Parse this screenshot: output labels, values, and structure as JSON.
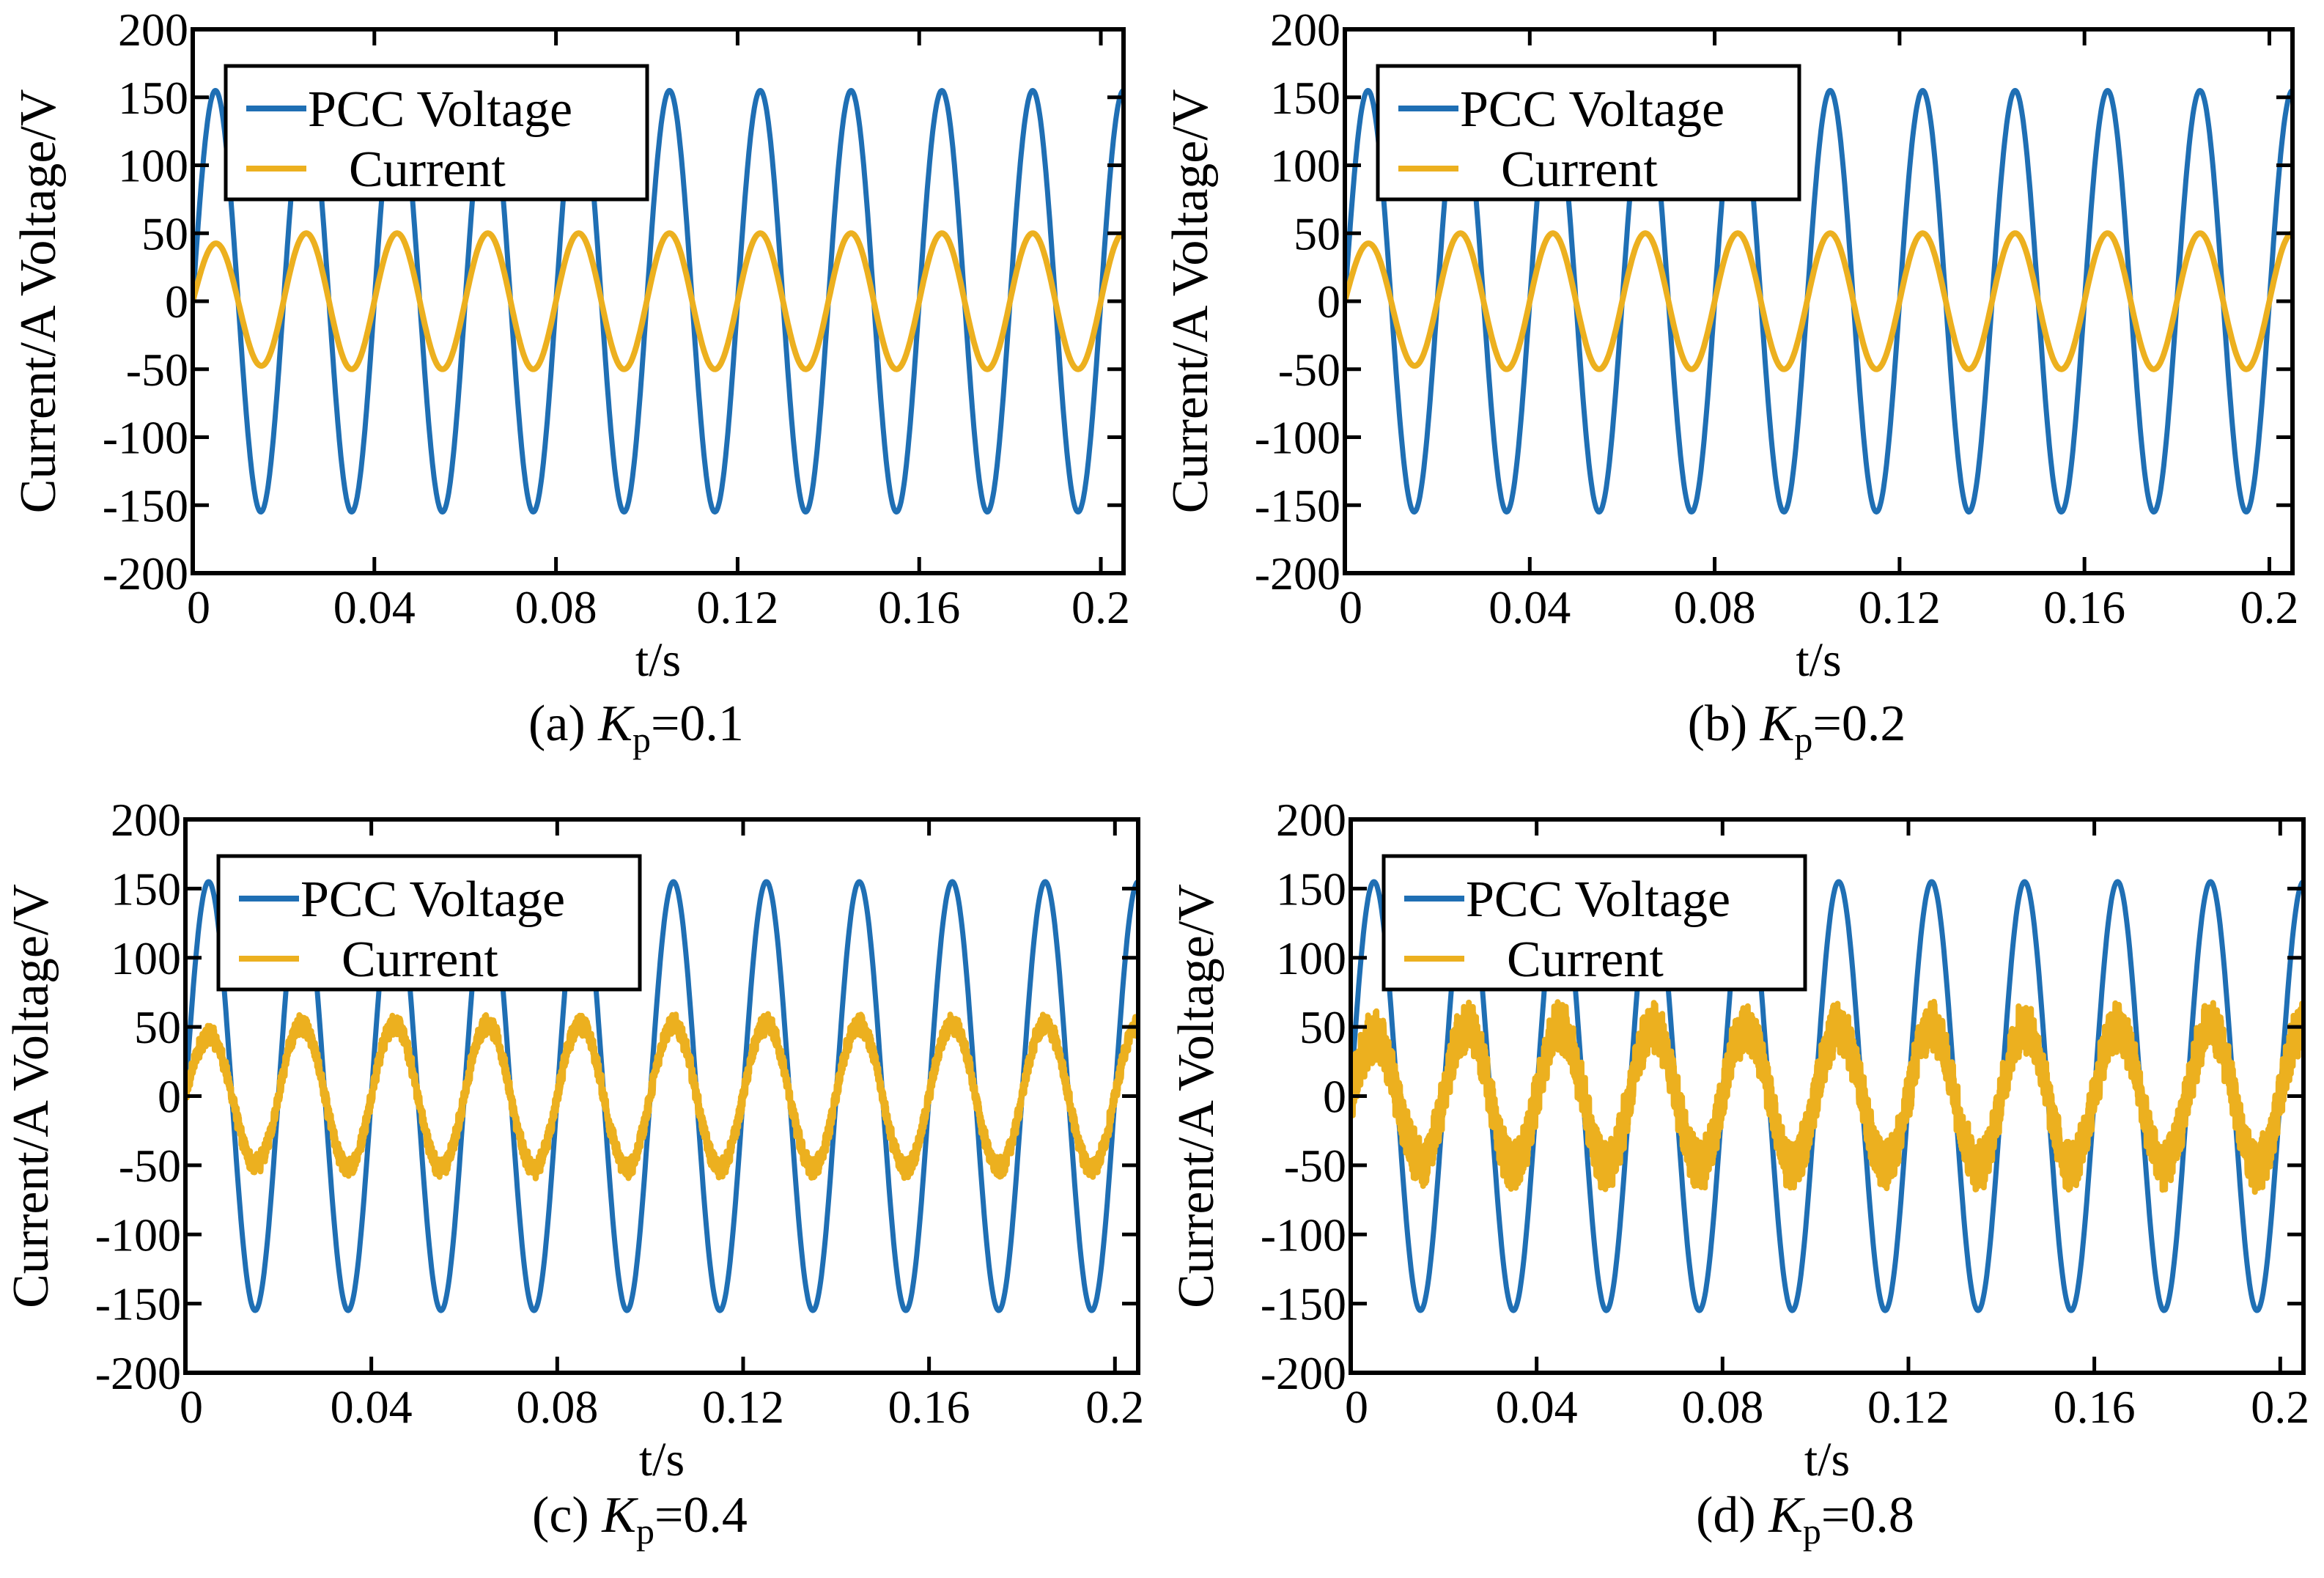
{
  "chart_data": [
    {
      "type": "line",
      "caption_prefix": "(a) ",
      "caption_var": "K",
      "caption_sub": "p",
      "caption_value": "=0.1",
      "xlabel": "t/s",
      "ylabel": "Current/A    Voltage/V",
      "xlim": [
        0,
        0.205
      ],
      "ylim": [
        -200,
        200
      ],
      "xticks": [
        "0",
        "0.04",
        "0.08",
        "0.12",
        "0.16",
        "0.2"
      ],
      "yticks": [
        "-200",
        "-150",
        "-100",
        "-50",
        "0",
        "50",
        "100",
        "150",
        "200"
      ],
      "legend_position": "top-left",
      "series": [
        {
          "name": "PCC Voltage",
          "color": "#1f6fb4",
          "amplitude": 155,
          "frequency_hz": 50,
          "noise": 0
        },
        {
          "name": "Current",
          "color": "#ecb01f",
          "amplitude": 50,
          "frequency_hz": 50,
          "noise": 0
        }
      ]
    },
    {
      "type": "line",
      "caption_prefix": "(b) ",
      "caption_var": "K",
      "caption_sub": "p",
      "caption_value": "=0.2",
      "xlabel": "t/s",
      "ylabel": "Current/A    Voltage/V",
      "xlim": [
        0,
        0.205
      ],
      "ylim": [
        -200,
        200
      ],
      "xticks": [
        "0",
        "0.04",
        "0.08",
        "0.12",
        "0.16",
        "0.2"
      ],
      "yticks": [
        "-200",
        "-150",
        "-100",
        "-50",
        "0",
        "50",
        "100",
        "150",
        "200"
      ],
      "legend_position": "top-left",
      "series": [
        {
          "name": "PCC Voltage",
          "color": "#1f6fb4",
          "amplitude": 155,
          "frequency_hz": 50,
          "noise": 0
        },
        {
          "name": "Current",
          "color": "#ecb01f",
          "amplitude": 50,
          "frequency_hz": 50,
          "noise": 0
        }
      ]
    },
    {
      "type": "line",
      "caption_prefix": "(c) ",
      "caption_var": "K",
      "caption_sub": "p",
      "caption_value": "=0.4",
      "xlabel": "t/s",
      "ylabel": "Current/A    Voltage/V",
      "xlim": [
        0,
        0.205
      ],
      "ylim": [
        -200,
        200
      ],
      "xticks": [
        "0",
        "0.04",
        "0.08",
        "0.12",
        "0.16",
        "0.2"
      ],
      "yticks": [
        "-200",
        "-150",
        "-100",
        "-50",
        "0",
        "50",
        "100",
        "150",
        "200"
      ],
      "legend_position": "top-left",
      "series": [
        {
          "name": "PCC Voltage",
          "color": "#1f6fb4",
          "amplitude": 155,
          "frequency_hz": 50,
          "noise": 0
        },
        {
          "name": "Current",
          "color": "#ecb01f",
          "amplitude": 52,
          "frequency_hz": 50,
          "noise": 8
        }
      ]
    },
    {
      "type": "line",
      "caption_prefix": "(d) ",
      "caption_var": "K",
      "caption_sub": "p",
      "caption_value": "=0.8",
      "xlabel": "t/s",
      "ylabel": "Current/A    Voltage/V",
      "xlim": [
        0,
        0.205
      ],
      "ylim": [
        -200,
        200
      ],
      "xticks": [
        "0",
        "0.04",
        "0.08",
        "0.12",
        "0.16",
        "0.2"
      ],
      "yticks": [
        "-200",
        "-150",
        "-100",
        "-50",
        "0",
        "50",
        "100",
        "150",
        "200"
      ],
      "legend_position": "top-left",
      "series": [
        {
          "name": "PCC Voltage",
          "color": "#1f6fb4",
          "amplitude": 155,
          "frequency_hz": 50,
          "noise": 0
        },
        {
          "name": "Current",
          "color": "#ecb01f",
          "amplitude": 50,
          "frequency_hz": 50,
          "noise": 20
        }
      ]
    }
  ]
}
